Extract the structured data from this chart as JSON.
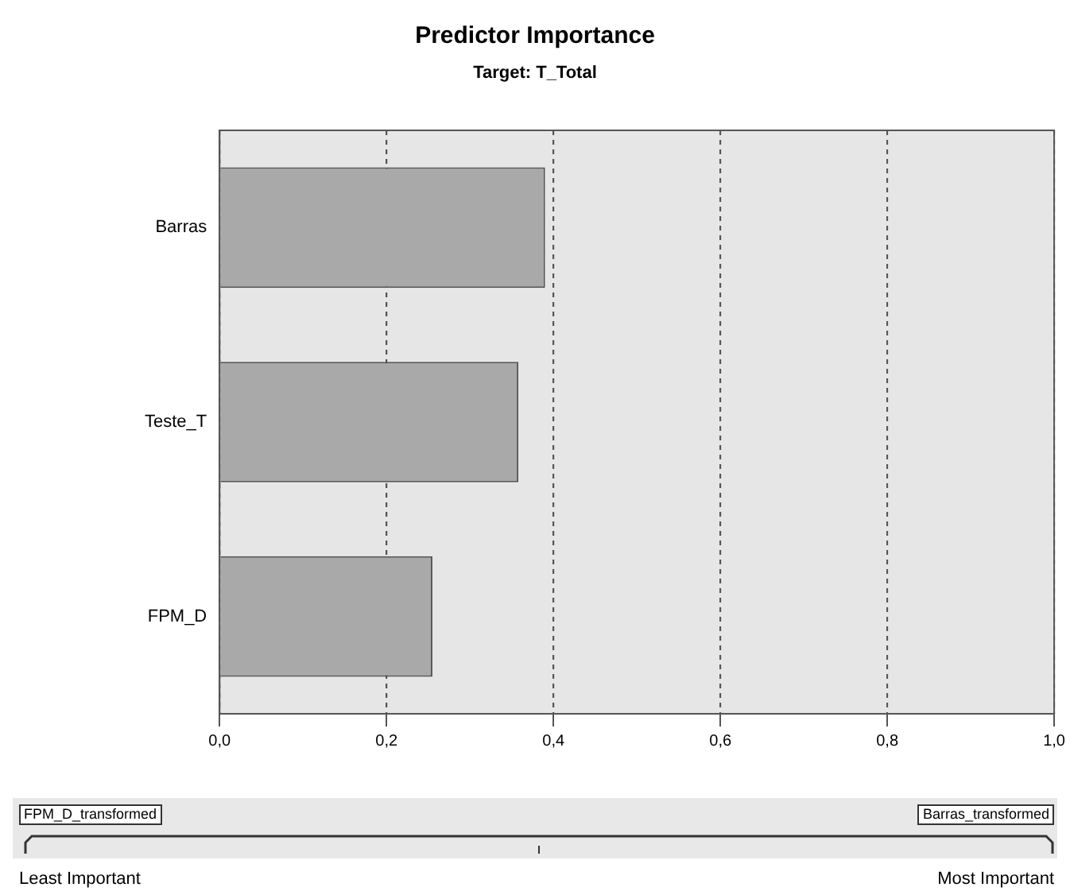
{
  "chart_data": {
    "type": "bar",
    "orientation": "horizontal",
    "title": "Predictor Importance",
    "subtitle": "Target: T_Total",
    "categories": [
      "Barras",
      "Teste_T",
      "FPM_D"
    ],
    "values": [
      0.39,
      0.358,
      0.255
    ],
    "color": "#a9a9a9",
    "xlim": [
      0,
      1
    ],
    "xticks": [
      {
        "value": 0,
        "label": "0,0"
      },
      {
        "value": 0.2,
        "label": "0,2"
      },
      {
        "value": 0.4,
        "label": "0,4"
      },
      {
        "value": 0.6,
        "label": "0,6"
      },
      {
        "value": 0.8,
        "label": "0,8"
      },
      {
        "value": 1,
        "label": "1,0"
      }
    ],
    "grid": "x",
    "legend": false,
    "annotations": [
      "FPM_D_transformed",
      "Barras_transformed",
      "Least Important",
      "Most Important"
    ]
  }
}
